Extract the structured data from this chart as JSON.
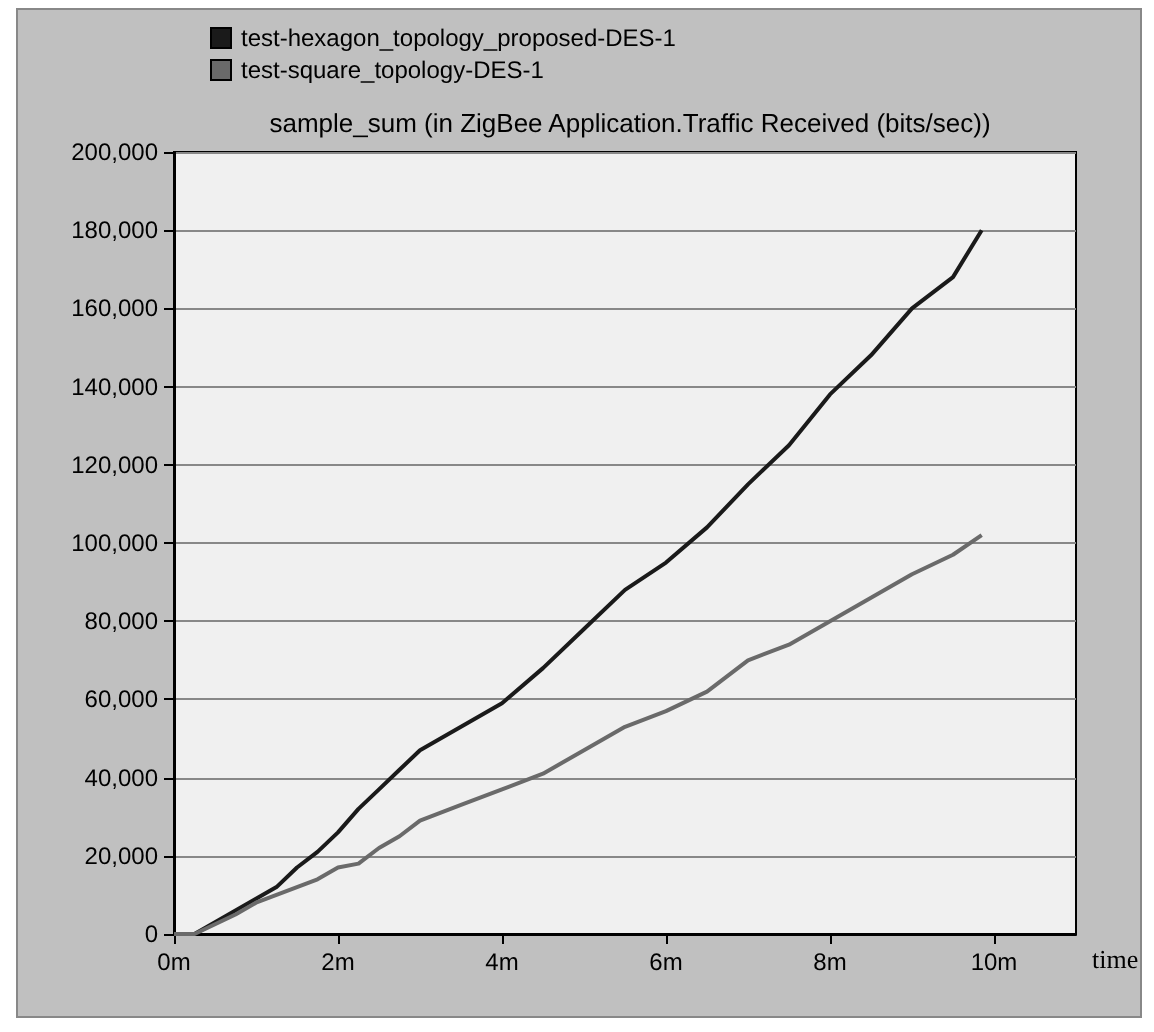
{
  "chart_data": {
    "type": "line",
    "title": "sample_sum (in ZigBee Application.Traffic Received (bits/sec))",
    "xlabel": "time",
    "series": [
      {
        "name": "test-hexagon_topology_proposed-DES-1",
        "color": "#1a1a1a",
        "x": [
          0,
          0.25,
          0.5,
          0.75,
          1,
          1.25,
          1.5,
          1.75,
          2,
          2.25,
          2.5,
          2.75,
          3,
          3.5,
          4,
          4.5,
          5,
          5.5,
          6,
          6.5,
          7,
          7.5,
          8,
          8.5,
          9,
          9.5,
          9.85
        ],
        "values": [
          0,
          0,
          3000,
          6000,
          9000,
          12000,
          17000,
          21000,
          26000,
          32000,
          37000,
          42000,
          47000,
          53000,
          59000,
          68000,
          78000,
          88000,
          95000,
          104000,
          115000,
          125000,
          138000,
          148000,
          160000,
          168000,
          180000
        ]
      },
      {
        "name": "test-square_topology-DES-1",
        "color": "#6a6a6a",
        "x": [
          0,
          0.25,
          0.5,
          0.75,
          1,
          1.25,
          1.5,
          1.75,
          2,
          2.25,
          2.5,
          2.75,
          3,
          3.5,
          4,
          4.5,
          5,
          5.5,
          6,
          6.5,
          7,
          7.5,
          8,
          8.5,
          9,
          9.5,
          9.85
        ],
        "values": [
          0,
          0,
          2500,
          5000,
          8000,
          10000,
          12000,
          14000,
          17000,
          18000,
          22000,
          25000,
          29000,
          33000,
          37000,
          41000,
          47000,
          53000,
          57000,
          62000,
          70000,
          74000,
          80000,
          86000,
          92000,
          97000,
          102000
        ]
      }
    ],
    "xlim": [
      0,
      11
    ],
    "xticks": [
      {
        "value": 0,
        "label": "0m"
      },
      {
        "value": 2,
        "label": "2m"
      },
      {
        "value": 4,
        "label": "4m"
      },
      {
        "value": 6,
        "label": "6m"
      },
      {
        "value": 8,
        "label": "8m"
      },
      {
        "value": 10,
        "label": "10m"
      }
    ],
    "ylim": [
      0,
      200000
    ],
    "yticks": [
      0,
      {
        "value": 20000,
        "label": "20,000"
      },
      {
        "value": 40000,
        "label": "40,000"
      },
      {
        "value": 60000,
        "label": "60,000"
      },
      {
        "value": 80000,
        "label": "80,000"
      },
      {
        "value": 100000,
        "label": "100,000"
      },
      {
        "value": 120000,
        "label": "120,000"
      },
      {
        "value": 140000,
        "label": "140,000"
      },
      {
        "value": 160000,
        "label": "160,000"
      },
      {
        "value": 180000,
        "label": "180,000"
      },
      {
        "value": 200000,
        "label": "200,000"
      }
    ],
    "grid": "y",
    "legend": "top left",
    "marker": "none",
    "line_style": "solid"
  }
}
